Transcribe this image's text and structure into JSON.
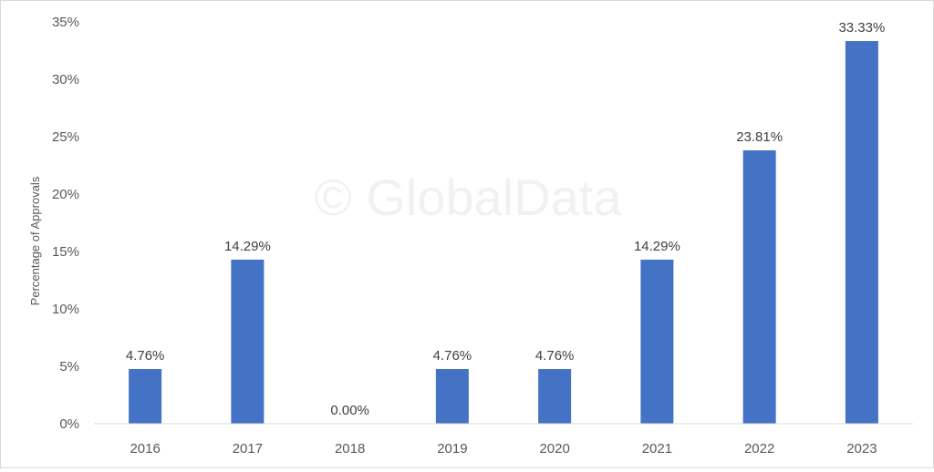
{
  "chart_data": {
    "type": "bar",
    "categories": [
      "2016",
      "2017",
      "2018",
      "2019",
      "2020",
      "2021",
      "2022",
      "2023"
    ],
    "values": [
      4.76,
      14.29,
      0.0,
      4.76,
      4.76,
      14.29,
      23.81,
      33.33
    ],
    "value_labels": [
      "4.76%",
      "14.29%",
      "0.00%",
      "4.76%",
      "4.76%",
      "14.29%",
      "23.81%",
      "33.33%"
    ],
    "ylabel": "Percentage of Approvals",
    "ylim": [
      0,
      35
    ],
    "yticks": [
      0,
      5,
      10,
      15,
      20,
      25,
      30,
      35
    ],
    "ytick_labels": [
      "0%",
      "5%",
      "10%",
      "15%",
      "20%",
      "25%",
      "30%",
      "35%"
    ],
    "grid": false,
    "bar_color": "#4472C4"
  },
  "watermark": "© GlobalData"
}
